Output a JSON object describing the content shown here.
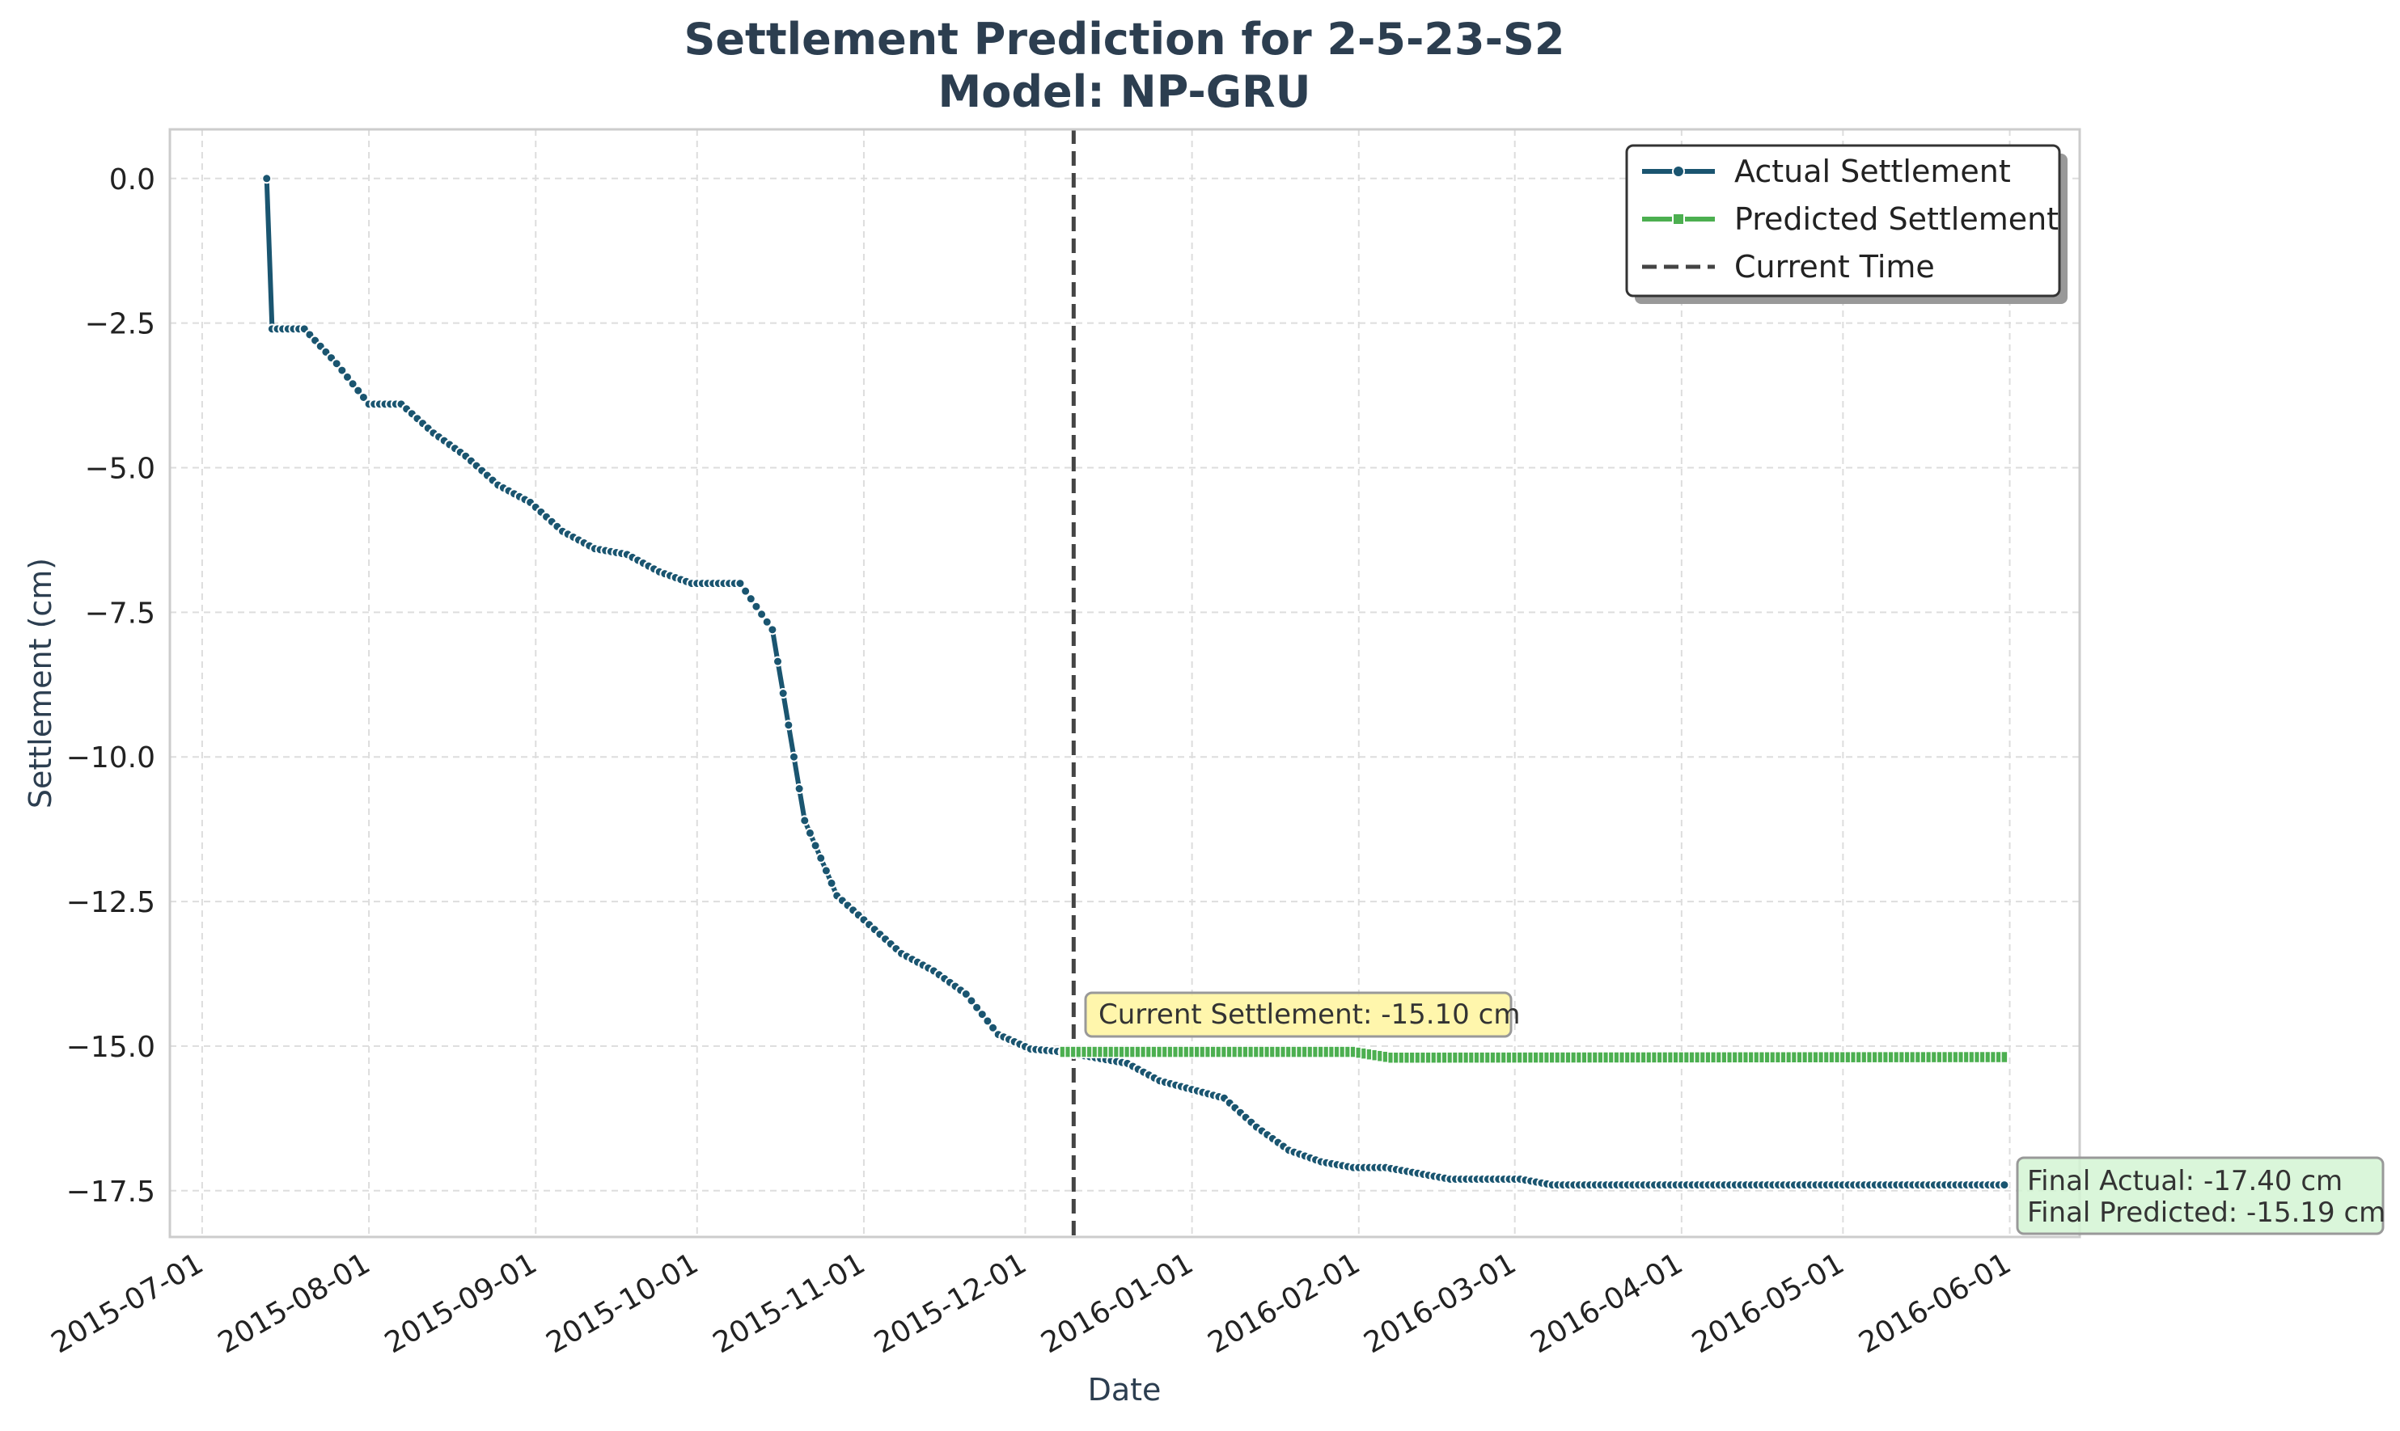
{
  "chart_data": {
    "type": "line",
    "title": "Settlement Prediction for 2-5-23-S2",
    "subtitle": "Model: NP-GRU",
    "xlabel": "Date",
    "ylabel": "Settlement (cm)",
    "x_type": "date",
    "xlim": [
      "2015-06-25",
      "2016-06-14"
    ],
    "ylim": [
      -18.3,
      0.85
    ],
    "grid": true,
    "x_ticks": [
      "2015-07-01",
      "2015-08-01",
      "2015-09-01",
      "2015-10-01",
      "2015-11-01",
      "2015-12-01",
      "2016-01-01",
      "2016-02-01",
      "2016-03-01",
      "2016-04-01",
      "2016-05-01",
      "2016-06-01"
    ],
    "y_ticks": [
      0.0,
      -2.5,
      -5.0,
      -7.5,
      -10.0,
      -12.5,
      -15.0,
      -17.5
    ],
    "y_tick_labels": [
      "0.0",
      "−2.5",
      "−5.0",
      "−7.5",
      "−10.0",
      "−12.5",
      "−15.0",
      "−17.5"
    ],
    "colors": {
      "actual": "#1a5570",
      "predicted": "#4caf50",
      "current": "#444444",
      "grid": "#dddddd",
      "frame": "#cccccc"
    },
    "legend": {
      "position": "top-right",
      "entries": [
        "Actual Settlement",
        "Predicted Settlement",
        "Current Time"
      ]
    },
    "current_time": "2015-12-10",
    "series": [
      {
        "name": "Actual Settlement",
        "key": "actual",
        "anchors": [
          [
            "2015-07-13",
            0.0
          ],
          [
            "2015-07-14",
            -2.6
          ],
          [
            "2015-07-20",
            -2.6
          ],
          [
            "2015-07-26",
            -3.2
          ],
          [
            "2015-08-01",
            -3.9
          ],
          [
            "2015-08-07",
            -3.9
          ],
          [
            "2015-08-13",
            -4.4
          ],
          [
            "2015-08-19",
            -4.8
          ],
          [
            "2015-08-25",
            -5.3
          ],
          [
            "2015-08-31",
            -5.6
          ],
          [
            "2015-09-06",
            -6.1
          ],
          [
            "2015-09-12",
            -6.4
          ],
          [
            "2015-09-18",
            -6.5
          ],
          [
            "2015-09-24",
            -6.8
          ],
          [
            "2015-09-30",
            -7.0
          ],
          [
            "2015-10-06",
            -7.0
          ],
          [
            "2015-10-09",
            -7.0
          ],
          [
            "2015-10-15",
            -7.8
          ],
          [
            "2015-10-21",
            -11.1
          ],
          [
            "2015-10-27",
            -12.4
          ],
          [
            "2015-11-02",
            -12.9
          ],
          [
            "2015-11-08",
            -13.4
          ],
          [
            "2015-11-14",
            -13.7
          ],
          [
            "2015-11-20",
            -14.1
          ],
          [
            "2015-11-26",
            -14.8
          ],
          [
            "2015-12-02",
            -15.05
          ],
          [
            "2015-12-08",
            -15.1
          ],
          [
            "2015-12-14",
            -15.2
          ],
          [
            "2015-12-20",
            -15.3
          ],
          [
            "2015-12-26",
            -15.6
          ],
          [
            "2016-01-01",
            -15.75
          ],
          [
            "2016-01-07",
            -15.9
          ],
          [
            "2016-01-13",
            -16.4
          ],
          [
            "2016-01-19",
            -16.8
          ],
          [
            "2016-01-25",
            -17.0
          ],
          [
            "2016-01-31",
            -17.1
          ],
          [
            "2016-02-06",
            -17.1
          ],
          [
            "2016-02-12",
            -17.2
          ],
          [
            "2016-02-18",
            -17.3
          ],
          [
            "2016-02-24",
            -17.3
          ],
          [
            "2016-03-02",
            -17.3
          ],
          [
            "2016-03-08",
            -17.4
          ],
          [
            "2016-03-14",
            -17.4
          ],
          [
            "2016-05-31",
            -17.4
          ]
        ]
      },
      {
        "name": "Predicted Settlement",
        "key": "predicted",
        "anchors": [
          [
            "2015-12-08",
            -15.1
          ],
          [
            "2016-01-31",
            -15.1
          ],
          [
            "2016-02-07",
            -15.2
          ],
          [
            "2016-05-31",
            -15.19
          ]
        ]
      }
    ],
    "annotations": {
      "current": "Current Settlement: -15.10 cm",
      "final_actual": "Final Actual: -17.40 cm",
      "final_predicted": "Final Predicted: -15.19 cm"
    }
  }
}
